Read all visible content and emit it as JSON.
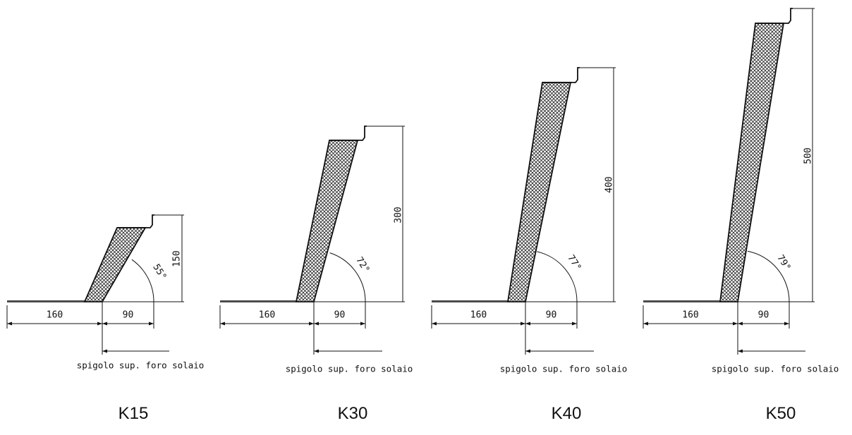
{
  "units": [
    {
      "model": "K15",
      "height": "150",
      "angle": "55°",
      "left_dim": "160",
      "right_dim": "90",
      "note": "spigolo sup. foro solaio"
    },
    {
      "model": "K30",
      "height": "300",
      "angle": "72°",
      "left_dim": "160",
      "right_dim": "90",
      "note": "spigolo sup. foro solaio"
    },
    {
      "model": "K40",
      "height": "400",
      "angle": "77°",
      "left_dim": "160",
      "right_dim": "90",
      "note": "spigolo sup. foro solaio"
    },
    {
      "model": "K50",
      "height": "500",
      "angle": "79°",
      "left_dim": "160",
      "right_dim": "90",
      "note": "spigolo sup. foro solaio"
    }
  ],
  "colors": {
    "line": "#111111",
    "hatch": "#222222",
    "background": "#ffffff"
  }
}
